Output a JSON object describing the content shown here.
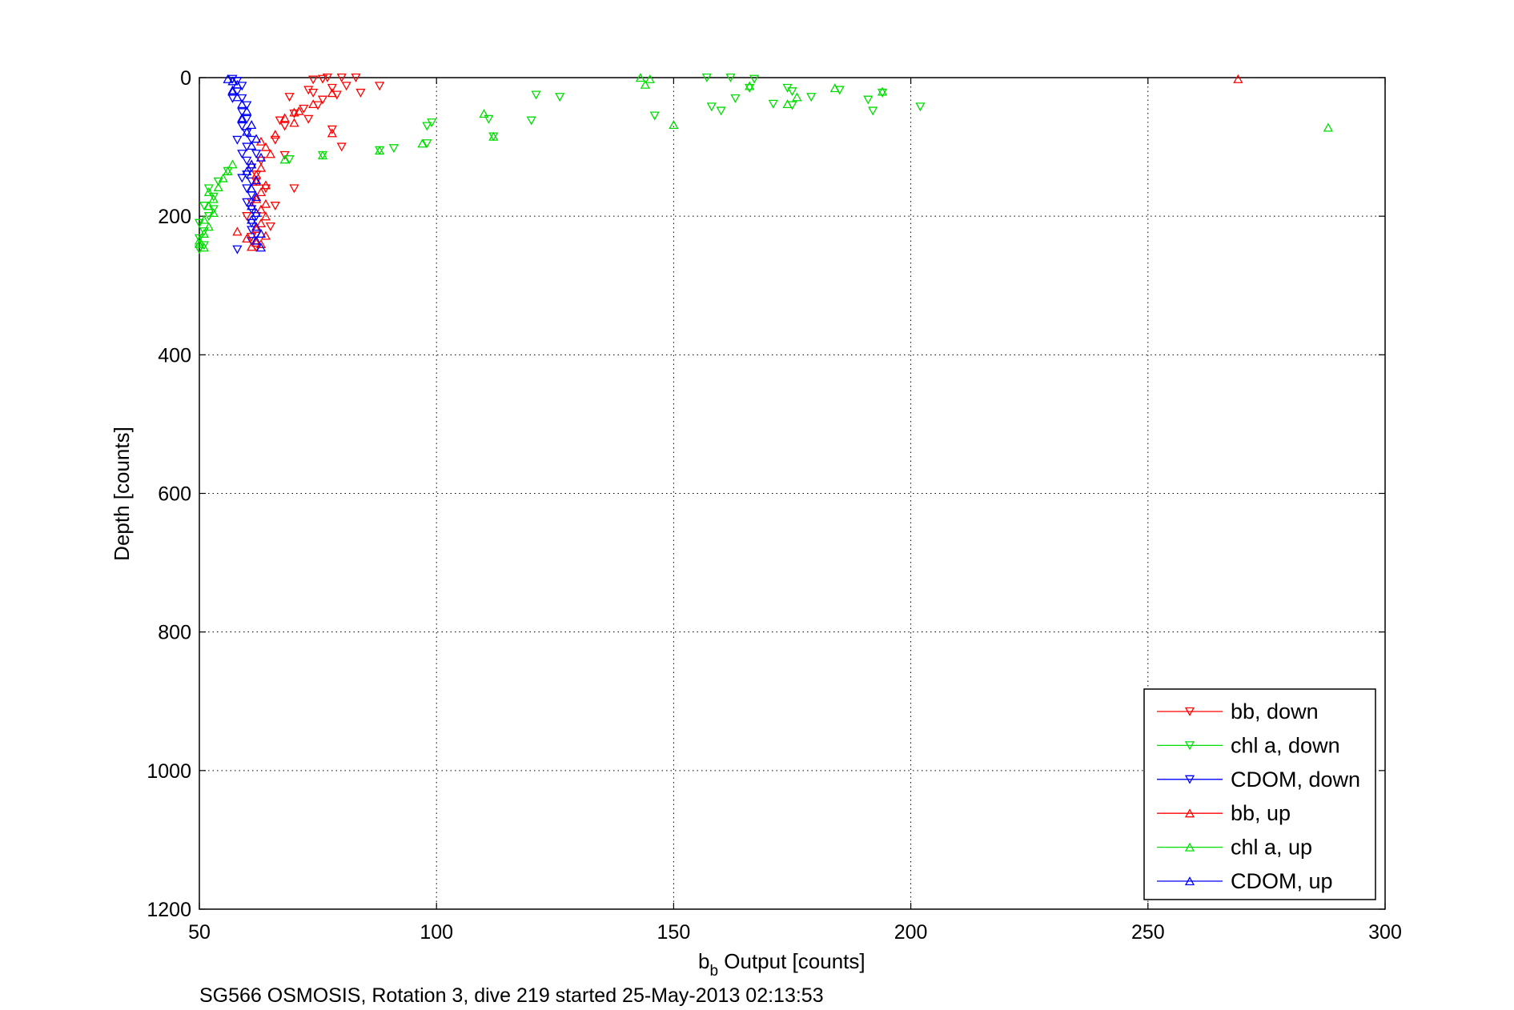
{
  "chart_data": {
    "type": "scatter",
    "xlabel_main": "b",
    "xlabel_sub": "b",
    "xlabel_rest": " Output [counts]",
    "ylabel": "Depth [counts]",
    "caption": "SG566 OSMOSIS, Rotation 3, dive 219 started 25-May-2013 02:13:53",
    "xlim": [
      50,
      300
    ],
    "ylim": [
      0,
      1200
    ],
    "y_reversed": true,
    "grid": true,
    "legend_position": "bottom-right",
    "x_ticks": [
      "50",
      "100",
      "150",
      "200",
      "250",
      "300"
    ],
    "y_ticks": [
      "0",
      "200",
      "400",
      "600",
      "800",
      "1000",
      "1200"
    ],
    "series": [
      {
        "name": "bb, down",
        "color": "#ff0000",
        "marker": "triangle-down",
        "points": [
          [
            74,
            3
          ],
          [
            76,
            2
          ],
          [
            77,
            0
          ],
          [
            80,
            0
          ],
          [
            83,
            0
          ],
          [
            81,
            12
          ],
          [
            84,
            22
          ],
          [
            88,
            12
          ],
          [
            78,
            15
          ],
          [
            79,
            25
          ],
          [
            73,
            18
          ],
          [
            76,
            32
          ],
          [
            75,
            40
          ],
          [
            72,
            45
          ],
          [
            70,
            52
          ],
          [
            68,
            70
          ],
          [
            67,
            62
          ],
          [
            69,
            28
          ],
          [
            74,
            22
          ],
          [
            73,
            60
          ],
          [
            66,
            90
          ],
          [
            63,
            120
          ],
          [
            62,
            150
          ],
          [
            61,
            180
          ],
          [
            60,
            200
          ],
          [
            61,
            230
          ],
          [
            62,
            245
          ],
          [
            65,
            215
          ],
          [
            66,
            185
          ],
          [
            68,
            112
          ],
          [
            70,
            160
          ],
          [
            78,
            75
          ],
          [
            80,
            100
          ],
          [
            62,
            140
          ],
          [
            64,
            160
          ]
        ]
      },
      {
        "name": "chl a, down",
        "color": "#00dd00",
        "marker": "triangle-down",
        "points": [
          [
            157,
            0
          ],
          [
            162,
            0
          ],
          [
            167,
            2
          ],
          [
            166,
            15
          ],
          [
            174,
            15
          ],
          [
            175,
            20
          ],
          [
            121,
            25
          ],
          [
            126,
            28
          ],
          [
            163,
            30
          ],
          [
            179,
            28
          ],
          [
            185,
            18
          ],
          [
            194,
            22
          ],
          [
            191,
            32
          ],
          [
            175,
            40
          ],
          [
            171,
            38
          ],
          [
            202,
            42
          ],
          [
            192,
            48
          ],
          [
            158,
            42
          ],
          [
            160,
            48
          ],
          [
            146,
            55
          ],
          [
            120,
            62
          ],
          [
            98,
            70
          ],
          [
            99,
            65
          ],
          [
            111,
            60
          ],
          [
            112,
            85
          ],
          [
            98,
            95
          ],
          [
            88,
            105
          ],
          [
            91,
            102
          ],
          [
            76,
            112
          ],
          [
            69,
            118
          ],
          [
            56,
            135
          ],
          [
            54,
            150
          ],
          [
            52,
            160
          ],
          [
            53,
            172
          ],
          [
            51,
            185
          ],
          [
            53,
            190
          ],
          [
            52,
            200
          ],
          [
            50,
            210
          ],
          [
            51,
            222
          ],
          [
            50,
            232
          ],
          [
            51,
            242
          ],
          [
            50,
            248
          ]
        ]
      },
      {
        "name": "CDOM, down",
        "color": "#0000ff",
        "marker": "triangle-down",
        "points": [
          [
            57,
            2
          ],
          [
            58,
            5
          ],
          [
            59,
            12
          ],
          [
            58,
            20
          ],
          [
            59,
            30
          ],
          [
            60,
            40
          ],
          [
            59,
            50
          ],
          [
            60,
            60
          ],
          [
            59,
            70
          ],
          [
            60,
            80
          ],
          [
            61,
            90
          ],
          [
            60,
            100
          ],
          [
            59,
            110
          ],
          [
            60,
            120
          ],
          [
            61,
            130
          ],
          [
            60,
            140
          ],
          [
            61,
            150
          ],
          [
            60,
            160
          ],
          [
            61,
            170
          ],
          [
            60,
            180
          ],
          [
            61,
            190
          ],
          [
            62,
            200
          ],
          [
            61,
            210
          ],
          [
            61,
            220
          ],
          [
            62,
            228
          ],
          [
            61,
            236
          ],
          [
            58,
            248
          ],
          [
            57,
            30
          ],
          [
            58,
            90
          ],
          [
            62,
            110
          ],
          [
            59,
            145
          ]
        ]
      },
      {
        "name": "bb, up",
        "color": "#ff0000",
        "marker": "triangle-up",
        "points": [
          [
            269,
            2
          ],
          [
            78,
            22
          ],
          [
            74,
            38
          ],
          [
            71,
            48
          ],
          [
            68,
            58
          ],
          [
            70,
            65
          ],
          [
            66,
            82
          ],
          [
            63,
            92
          ],
          [
            64,
            100
          ],
          [
            65,
            110
          ],
          [
            63,
            130
          ],
          [
            62,
            140
          ],
          [
            64,
            155
          ],
          [
            63,
            165
          ],
          [
            62,
            175
          ],
          [
            64,
            182
          ],
          [
            63,
            190
          ],
          [
            64,
            200
          ],
          [
            63,
            210
          ],
          [
            62,
            218
          ],
          [
            64,
            228
          ],
          [
            62,
            238
          ],
          [
            61,
            244
          ],
          [
            63,
            240
          ],
          [
            60,
            232
          ],
          [
            58,
            222
          ],
          [
            62,
            150
          ],
          [
            61,
            125
          ],
          [
            78,
            80
          ],
          [
            70,
            50
          ]
        ]
      },
      {
        "name": "chl a, up",
        "color": "#00dd00",
        "marker": "triangle-up",
        "points": [
          [
            143,
            0
          ],
          [
            145,
            2
          ],
          [
            144,
            10
          ],
          [
            166,
            12
          ],
          [
            184,
            15
          ],
          [
            194,
            20
          ],
          [
            176,
            28
          ],
          [
            174,
            38
          ],
          [
            150,
            68
          ],
          [
            288,
            72
          ],
          [
            110,
            52
          ],
          [
            112,
            85
          ],
          [
            97,
            95
          ],
          [
            88,
            105
          ],
          [
            76,
            112
          ],
          [
            68,
            118
          ],
          [
            57,
            125
          ],
          [
            56,
            135
          ],
          [
            55,
            145
          ],
          [
            54,
            158
          ],
          [
            52,
            165
          ],
          [
            53,
            175
          ],
          [
            52,
            185
          ],
          [
            53,
            195
          ],
          [
            51,
            205
          ],
          [
            52,
            215
          ],
          [
            51,
            225
          ],
          [
            50,
            235
          ],
          [
            51,
            245
          ],
          [
            50,
            240
          ]
        ]
      },
      {
        "name": "CDOM, up",
        "color": "#0000ff",
        "marker": "triangle-up",
        "points": [
          [
            56,
            2
          ],
          [
            57,
            5
          ],
          [
            58,
            10
          ],
          [
            57,
            18
          ],
          [
            58,
            28
          ],
          [
            59,
            38
          ],
          [
            60,
            48
          ],
          [
            59,
            58
          ],
          [
            61,
            68
          ],
          [
            60,
            78
          ],
          [
            62,
            88
          ],
          [
            61,
            98
          ],
          [
            63,
            115
          ],
          [
            61,
            125
          ],
          [
            60,
            135
          ],
          [
            62,
            148
          ],
          [
            61,
            160
          ],
          [
            62,
            172
          ],
          [
            61,
            185
          ],
          [
            62,
            195
          ],
          [
            61,
            205
          ],
          [
            62,
            215
          ],
          [
            63,
            225
          ],
          [
            62,
            235
          ],
          [
            63,
            245
          ],
          [
            59,
            60
          ],
          [
            57,
            20
          ]
        ]
      }
    ]
  }
}
